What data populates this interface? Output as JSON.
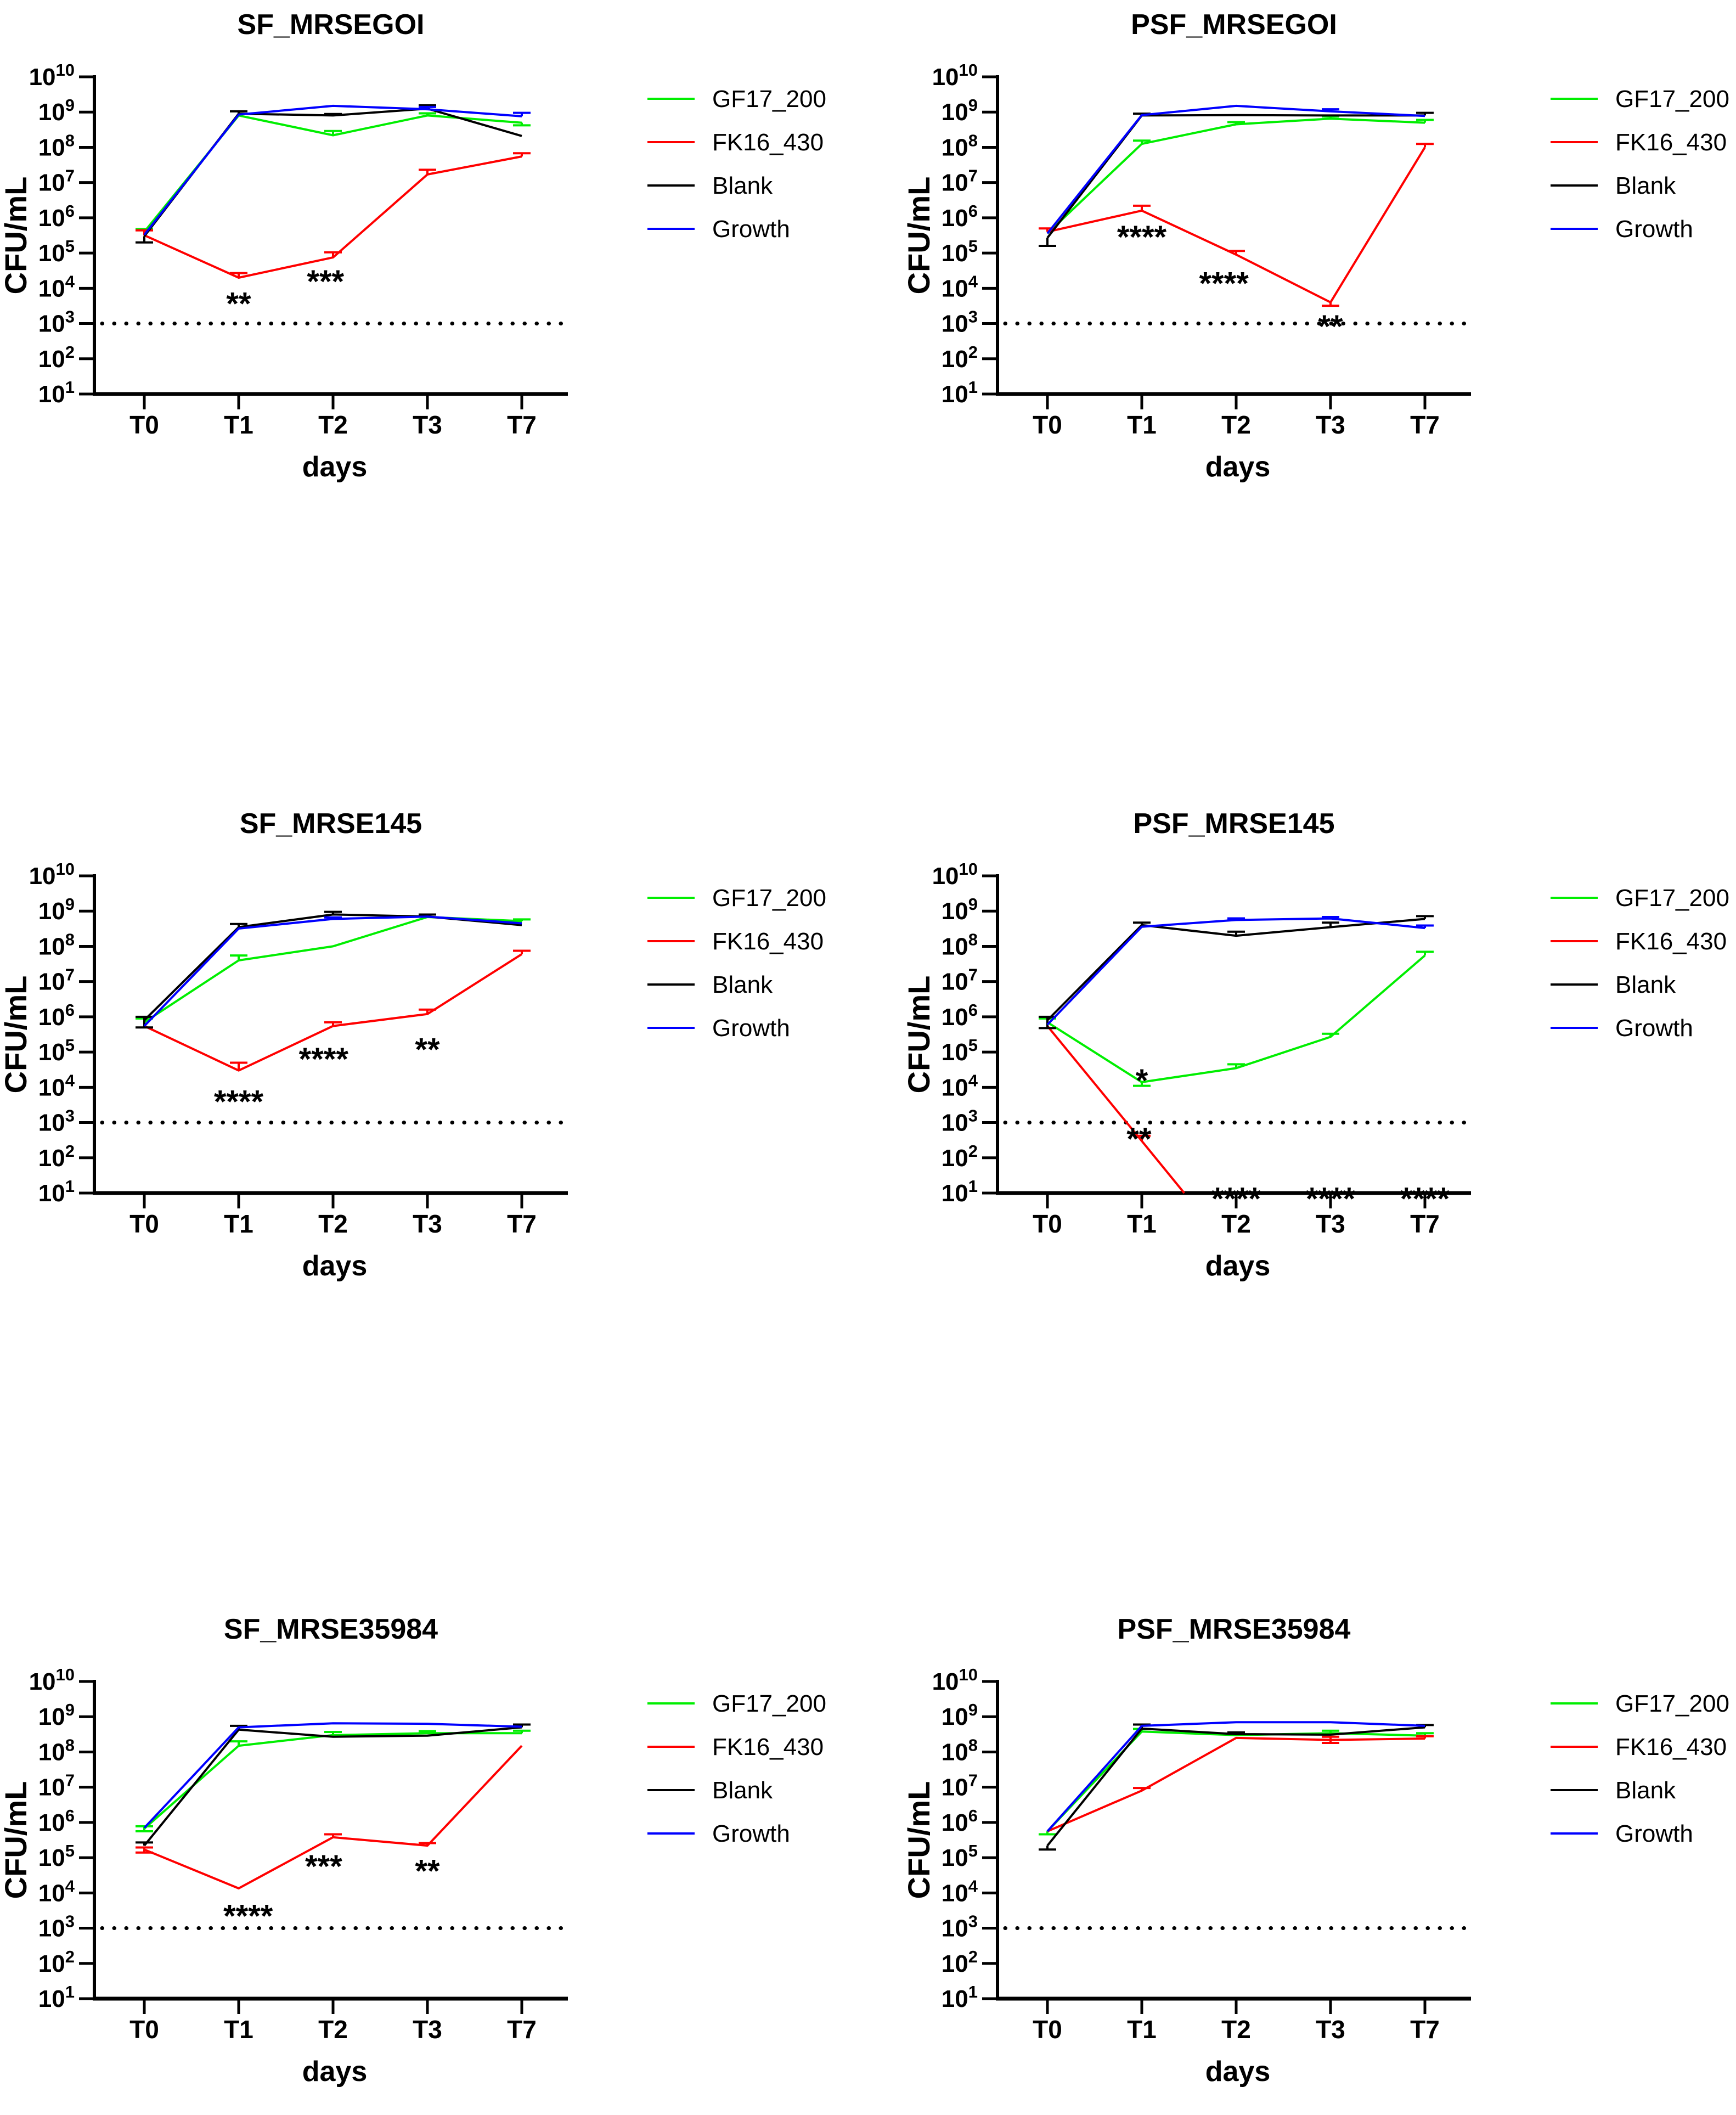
{
  "figure": {
    "background": "#ffffff",
    "xlabel": "days",
    "ylabel": "CFU/mL",
    "y_base": "10",
    "y_tick_exponents": [
      10,
      9,
      8,
      7,
      6,
      5,
      4,
      3,
      2,
      1
    ],
    "x_tick_labels": [
      "T0",
      "T1",
      "T2",
      "T3",
      "T7"
    ],
    "threshold_value": 1000,
    "threshold_style": "dotted",
    "legend": [
      {
        "label": "GF17_200",
        "color": "#00EE00"
      },
      {
        "label": "FK16_430",
        "color": "#FF0000"
      },
      {
        "label": "Blank",
        "color": "#000000"
      },
      {
        "label": "Growth",
        "color": "#0000FF"
      }
    ]
  },
  "chart_data": [
    {
      "type": "line",
      "title": "SF_MRSEGOI",
      "xlabel": "days",
      "ylabel": "CFU/mL",
      "y_scale": "log10",
      "ylim": [
        10,
        10000000000
      ],
      "x_categories": [
        "T0",
        "T1",
        "T2",
        "T3",
        "T7"
      ],
      "threshold": 1000,
      "grid": false,
      "legend_position": "right",
      "series": [
        {
          "name": "GF17_200",
          "color": "#00EE00",
          "points": [
            {
              "x": 0,
              "v": 400000.0,
              "eu": 480000.0
            },
            {
              "x": 1,
              "v": 800000000.0
            },
            {
              "x": 2,
              "v": 220000000.0,
              "eu": 290000000.0
            },
            {
              "x": 3,
              "v": 800000000.0,
              "eu": 920000000.0
            },
            {
              "x": 4,
              "v": 500000000.0,
              "el": 420000000.0
            }
          ]
        },
        {
          "name": "FK16_430",
          "color": "#FF0000",
          "points": [
            {
              "x": 0,
              "v": 320000.0,
              "eu": 440000.0
            },
            {
              "x": 1,
              "v": 20000.0,
              "eu": 27000.0
            },
            {
              "x": 2,
              "v": 75000.0,
              "eu": 105000.0
            },
            {
              "x": 3,
              "v": 17000000.0,
              "eu": 23000000.0
            },
            {
              "x": 4,
              "v": 55000000.0,
              "eu": 68000000.0
            }
          ]
        },
        {
          "name": "Blank",
          "color": "#000000",
          "points": [
            {
              "x": 0,
              "v": 300000.0,
              "el": 200000.0
            },
            {
              "x": 1,
              "v": 900000000.0,
              "eu": 1050000000.0
            },
            {
              "x": 2,
              "v": 800000000.0,
              "eu": 880000000.0
            },
            {
              "x": 3,
              "v": 1250000000.0,
              "eu": 1550000000.0
            },
            {
              "x": 4,
              "v": 210000000.0
            }
          ]
        },
        {
          "name": "Growth",
          "color": "#0000FF",
          "points": [
            {
              "x": 0,
              "v": 330000.0
            },
            {
              "x": 1,
              "v": 850000000.0
            },
            {
              "x": 2,
              "v": 1500000000.0
            },
            {
              "x": 3,
              "v": 1200000000.0,
              "eu": 1400000000.0
            },
            {
              "x": 4,
              "v": 760000000.0,
              "eu": 950000000.0
            }
          ]
        }
      ],
      "annotations": [
        {
          "x": 1,
          "v": 7500,
          "text": "**"
        },
        {
          "x": 1.92,
          "v": 32000,
          "text": "***"
        }
      ]
    },
    {
      "type": "line",
      "title": "PSF_MRSEGOI",
      "xlabel": "days",
      "ylabel": "CFU/mL",
      "y_scale": "log10",
      "ylim": [
        10,
        10000000000
      ],
      "x_categories": [
        "T0",
        "T1",
        "T2",
        "T3",
        "T7"
      ],
      "threshold": 1000,
      "grid": false,
      "legend_position": "right",
      "series": [
        {
          "name": "GF17_200",
          "color": "#00EE00",
          "points": [
            {
              "x": 0,
              "v": 360000.0
            },
            {
              "x": 1,
              "v": 125000000.0,
              "eu": 155000000.0
            },
            {
              "x": 2,
              "v": 450000000.0,
              "eu": 520000000.0
            },
            {
              "x": 3,
              "v": 650000000.0,
              "eu": 750000000.0
            },
            {
              "x": 4,
              "v": 500000000.0,
              "eu": 600000000.0
            }
          ]
        },
        {
          "name": "FK16_430",
          "color": "#FF0000",
          "points": [
            {
              "x": 0,
              "v": 400000.0,
              "eu": 500000.0
            },
            {
              "x": 1,
              "v": 1600000.0,
              "eu": 2200000.0
            },
            {
              "x": 2,
              "v": 90000.0,
              "eu": 115000.0
            },
            {
              "x": 3,
              "v": 4000.0,
              "el": 3200.0
            },
            {
              "x": 4,
              "v": 100000000.0,
              "eu": 125000000.0
            }
          ]
        },
        {
          "name": "Blank",
          "color": "#000000",
          "points": [
            {
              "x": 0,
              "v": 270000.0,
              "el": 160000.0
            },
            {
              "x": 1,
              "v": 800000000.0,
              "eu": 900000000.0
            },
            {
              "x": 2,
              "v": 820000000.0
            },
            {
              "x": 3,
              "v": 800000000.0
            },
            {
              "x": 4,
              "v": 800000000.0,
              "eu": 950000000.0
            }
          ]
        },
        {
          "name": "Growth",
          "color": "#0000FF",
          "points": [
            {
              "x": 0,
              "v": 360000.0
            },
            {
              "x": 1,
              "v": 820000000.0
            },
            {
              "x": 2,
              "v": 1500000000.0
            },
            {
              "x": 3,
              "v": 1050000000.0,
              "eu": 1200000000.0
            },
            {
              "x": 4,
              "v": 780000000.0
            }
          ]
        }
      ],
      "annotations": [
        {
          "x": 1,
          "v": 580000.0,
          "text": "****"
        },
        {
          "x": 1.87,
          "v": 28000.0,
          "text": "****"
        },
        {
          "x": 3,
          "v": 1700,
          "text": "**"
        }
      ]
    },
    {
      "type": "line",
      "title": "SF_MRSE145",
      "xlabel": "days",
      "ylabel": "CFU/mL",
      "y_scale": "log10",
      "ylim": [
        10,
        10000000000
      ],
      "x_categories": [
        "T0",
        "T1",
        "T2",
        "T3",
        "T7"
      ],
      "threshold": 1000,
      "grid": false,
      "legend_position": "right",
      "series": [
        {
          "name": "GF17_200",
          "color": "#00EE00",
          "points": [
            {
              "x": 0,
              "v": 700000.0,
              "eu": 900000.0
            },
            {
              "x": 1,
              "v": 40000000.0,
              "eu": 55000000.0
            },
            {
              "x": 2,
              "v": 100000000.0
            },
            {
              "x": 3,
              "v": 680000000.0
            },
            {
              "x": 4,
              "v": 520000000.0,
              "eu": 580000000.0
            }
          ]
        },
        {
          "name": "FK16_430",
          "color": "#FF0000",
          "points": [
            {
              "x": 0,
              "v": 550000.0
            },
            {
              "x": 1,
              "v": 30000.0,
              "eu": 50000.0
            },
            {
              "x": 2,
              "v": 550000.0,
              "eu": 700000.0
            },
            {
              "x": 3,
              "v": 1200000.0,
              "eu": 1600000.0
            },
            {
              "x": 4,
              "v": 60000000.0,
              "eu": 75000000.0
            }
          ]
        },
        {
          "name": "Blank",
          "color": "#000000",
          "points": [
            {
              "x": 0,
              "v": 800000.0,
              "eu": 1000000.0,
              "el": 500000.0
            },
            {
              "x": 1,
              "v": 350000000.0,
              "eu": 430000000.0
            },
            {
              "x": 2,
              "v": 800000000.0,
              "eu": 950000000.0
            },
            {
              "x": 3,
              "v": 700000000.0,
              "eu": 800000000.0
            },
            {
              "x": 4,
              "v": 400000000.0
            }
          ]
        },
        {
          "name": "Growth",
          "color": "#0000FF",
          "points": [
            {
              "x": 0,
              "v": 550000.0
            },
            {
              "x": 1,
              "v": 320000000.0
            },
            {
              "x": 2,
              "v": 600000000.0,
              "eu": 660000000.0
            },
            {
              "x": 3,
              "v": 700000000.0
            },
            {
              "x": 4,
              "v": 450000000.0
            }
          ]
        }
      ],
      "annotations": [
        {
          "x": 1,
          "v": 8000,
          "text": "****"
        },
        {
          "x": 1.9,
          "v": 130000.0,
          "text": "****"
        },
        {
          "x": 3,
          "v": 240000.0,
          "text": "**"
        }
      ]
    },
    {
      "type": "line",
      "title": "PSF_MRSE145",
      "xlabel": "days",
      "ylabel": "CFU/mL",
      "y_scale": "log10",
      "ylim": [
        10,
        10000000000
      ],
      "x_categories": [
        "T0",
        "T1",
        "T2",
        "T3",
        "T7"
      ],
      "threshold": 1000,
      "grid": false,
      "legend_position": "right",
      "series": [
        {
          "name": "GF17_200",
          "color": "#00EE00",
          "points": [
            {
              "x": 0,
              "v": 700000.0,
              "eu": 900000.0
            },
            {
              "x": 1,
              "v": 14000.0,
              "el": 11000.0
            },
            {
              "x": 2,
              "v": 35000.0,
              "eu": 45000.0
            },
            {
              "x": 3,
              "v": 270000.0,
              "eu": 330000.0
            },
            {
              "x": 4,
              "v": 55000000.0,
              "eu": 70000000.0
            }
          ]
        },
        {
          "name": "FK16_430",
          "color": "#FF0000",
          "points": [
            {
              "x": 0,
              "v": 550000.0
            },
            {
              "x": 1,
              "v": 300,
              "eu": 420
            },
            {
              "x": 1.45,
              "v": 10
            }
          ]
        },
        {
          "name": "Blank",
          "color": "#000000",
          "points": [
            {
              "x": 0,
              "v": 800000.0,
              "eu": 1000000.0,
              "el": 480000.0
            },
            {
              "x": 1,
              "v": 400000000.0,
              "eu": 470000000.0
            },
            {
              "x": 2,
              "v": 200000000.0,
              "eu": 260000000.0
            },
            {
              "x": 3,
              "v": 350000000.0,
              "eu": 470000000.0
            },
            {
              "x": 4,
              "v": 600000000.0,
              "eu": 720000000.0
            }
          ]
        },
        {
          "name": "Growth",
          "color": "#0000FF",
          "points": [
            {
              "x": 0,
              "v": 600000.0
            },
            {
              "x": 1,
              "v": 360000000.0
            },
            {
              "x": 2,
              "v": 560000000.0,
              "eu": 620000000.0
            },
            {
              "x": 3,
              "v": 620000000.0,
              "eu": 680000000.0
            },
            {
              "x": 4,
              "v": 330000000.0,
              "eu": 390000000.0
            }
          ]
        }
      ],
      "annotations": [
        {
          "x": 1,
          "v": 32000.0,
          "text": "*"
        },
        {
          "x": 0.97,
          "v": 700,
          "text": "**"
        },
        {
          "x": 2,
          "v": 14,
          "text": "****"
        },
        {
          "x": 3,
          "v": 14,
          "text": "****"
        },
        {
          "x": 4,
          "v": 14,
          "text": "****"
        }
      ]
    },
    {
      "type": "line",
      "title": "SF_MRSE35984",
      "xlabel": "days",
      "ylabel": "CFU/mL",
      "y_scale": "log10",
      "ylim": [
        10,
        10000000000
      ],
      "x_categories": [
        "T0",
        "T1",
        "T2",
        "T3",
        "T7"
      ],
      "threshold": 1000,
      "grid": false,
      "legend_position": "right",
      "series": [
        {
          "name": "GF17_200",
          "color": "#00EE00",
          "points": [
            {
              "x": 0,
              "v": 670000.0,
              "eu": 780000.0,
              "el": 560000.0
            },
            {
              "x": 1,
              "v": 150000000.0,
              "eu": 200000000.0
            },
            {
              "x": 2,
              "v": 300000000.0,
              "eu": 370000000.0
            },
            {
              "x": 3,
              "v": 340000000.0,
              "eu": 390000000.0
            },
            {
              "x": 4,
              "v": 340000000.0,
              "eu": 400000000.0
            }
          ]
        },
        {
          "name": "FK16_430",
          "color": "#FF0000",
          "points": [
            {
              "x": 0,
              "v": 170000.0,
              "eu": 195000.0,
              "el": 140000.0
            },
            {
              "x": 1,
              "v": 13500.0
            },
            {
              "x": 2,
              "v": 380000.0,
              "eu": 460000.0
            },
            {
              "x": 3,
              "v": 220000.0,
              "eu": 260000.0
            },
            {
              "x": 4,
              "v": 150000000.0
            }
          ]
        },
        {
          "name": "Blank",
          "color": "#000000",
          "points": [
            {
              "x": 0,
              "v": 220000.0,
              "eu": 270000.0
            },
            {
              "x": 1,
              "v": 430000000.0,
              "eu": 550000000.0
            },
            {
              "x": 2,
              "v": 270000000.0
            },
            {
              "x": 3,
              "v": 290000000.0
            },
            {
              "x": 4,
              "v": 500000000.0,
              "eu": 600000000.0
            }
          ]
        },
        {
          "name": "Growth",
          "color": "#0000FF",
          "points": [
            {
              "x": 0,
              "v": 700000.0
            },
            {
              "x": 1,
              "v": 500000000.0
            },
            {
              "x": 2,
              "v": 650000000.0
            },
            {
              "x": 3,
              "v": 630000000.0
            },
            {
              "x": 4,
              "v": 520000000.0
            }
          ]
        }
      ],
      "annotations": [
        {
          "x": 1.1,
          "v": 4500,
          "text": "****"
        },
        {
          "x": 1.9,
          "v": 115000.0,
          "text": "***"
        },
        {
          "x": 3,
          "v": 85000.0,
          "text": "**"
        }
      ]
    },
    {
      "type": "line",
      "title": "PSF_MRSE35984",
      "xlabel": "days",
      "ylabel": "CFU/mL",
      "y_scale": "log10",
      "ylim": [
        10,
        10000000000
      ],
      "x_categories": [
        "T0",
        "T1",
        "T2",
        "T3",
        "T7"
      ],
      "threshold": 1000,
      "grid": false,
      "legend_position": "right",
      "series": [
        {
          "name": "GF17_200",
          "color": "#00EE00",
          "points": [
            {
              "x": 0,
              "v": 560000.0,
              "el": 460000.0
            },
            {
              "x": 1,
              "v": 380000000.0,
              "eu": 450000000.0
            },
            {
              "x": 2,
              "v": 300000000.0
            },
            {
              "x": 3,
              "v": 340000000.0,
              "eu": 400000000.0
            },
            {
              "x": 4,
              "v": 290000000.0,
              "eu": 340000000.0
            }
          ]
        },
        {
          "name": "FK16_430",
          "color": "#FF0000",
          "points": [
            {
              "x": 0,
              "v": 560000.0
            },
            {
              "x": 1,
              "v": 8000000.0,
              "eu": 9500000.0
            },
            {
              "x": 2,
              "v": 250000000.0
            },
            {
              "x": 3,
              "v": 220000000.0,
              "eu": 270000000.0,
              "el": 180000000.0
            },
            {
              "x": 4,
              "v": 240000000.0,
              "eu": 280000000.0
            }
          ]
        },
        {
          "name": "Blank",
          "color": "#000000",
          "points": [
            {
              "x": 0,
              "v": 220000.0,
              "el": 170000.0
            },
            {
              "x": 1,
              "v": 460000000.0,
              "eu": 600000000.0
            },
            {
              "x": 2,
              "v": 320000000.0,
              "eu": 360000000.0
            },
            {
              "x": 3,
              "v": 310000000.0
            },
            {
              "x": 4,
              "v": 500000000.0,
              "eu": 580000000.0
            }
          ]
        },
        {
          "name": "Growth",
          "color": "#0000FF",
          "points": [
            {
              "x": 0,
              "v": 560000.0
            },
            {
              "x": 1,
              "v": 550000000.0
            },
            {
              "x": 2,
              "v": 700000000.0
            },
            {
              "x": 3,
              "v": 700000000.0
            },
            {
              "x": 4,
              "v": 550000000.0
            }
          ]
        }
      ],
      "annotations": []
    }
  ]
}
